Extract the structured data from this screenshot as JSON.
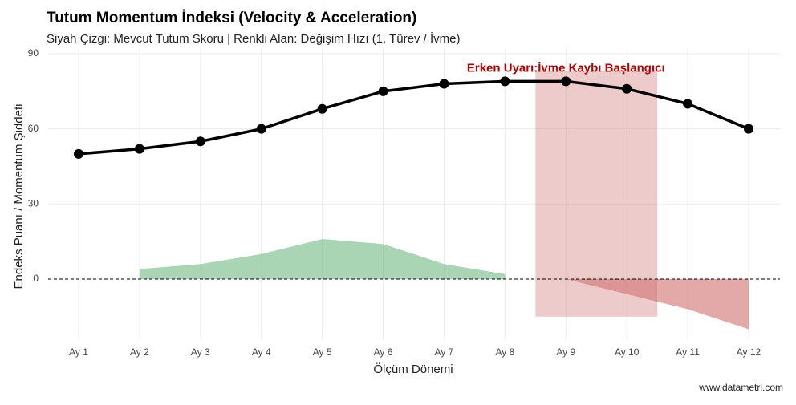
{
  "chart_data": {
    "type": "line",
    "title": "Tutum Momentum İndeksi (Velocity & Acceleration)",
    "subtitle": "Siyah Çizgi: Mevcut Tutum Skoru | Renkli Alan: Değişim Hızı (1. Türev / İvme)",
    "x_label": "Ölçüm Dönemi",
    "y_label": "Endeks Puanı / Momentum Şiddeti",
    "caption": "www.datametri.com",
    "categories": [
      "Ay 1",
      "Ay 2",
      "Ay 3",
      "Ay 4",
      "Ay 5",
      "Ay 6",
      "Ay 7",
      "Ay 8",
      "Ay 9",
      "Ay 10",
      "Ay 11",
      "Ay 12"
    ],
    "series": [
      {
        "name": "Tutum Skoru",
        "color": "#000000",
        "values": [
          50,
          52,
          55,
          60,
          68,
          75,
          78,
          79,
          79,
          76,
          70,
          60
        ]
      },
      {
        "name": "Değişim Hızı",
        "kind": "area",
        "color": "#7dbf8e",
        "negative_color": "#d07070",
        "values": [
          null,
          4,
          6,
          10,
          16,
          14,
          6,
          2,
          0,
          -6,
          -12,
          -20
        ]
      }
    ],
    "ylim": [
      -24,
      92
    ],
    "yticks": [
      0,
      30,
      60,
      90
    ],
    "grid": true,
    "highlight": {
      "x": [
        8.5,
        10.5
      ],
      "y": [
        -15,
        83
      ],
      "color": "#d98c8c",
      "label": "Erken Uyarı:İvme Kaybı Başlangıcı",
      "label_x": 9,
      "label_y": 84,
      "label_color": "#b30000"
    }
  }
}
